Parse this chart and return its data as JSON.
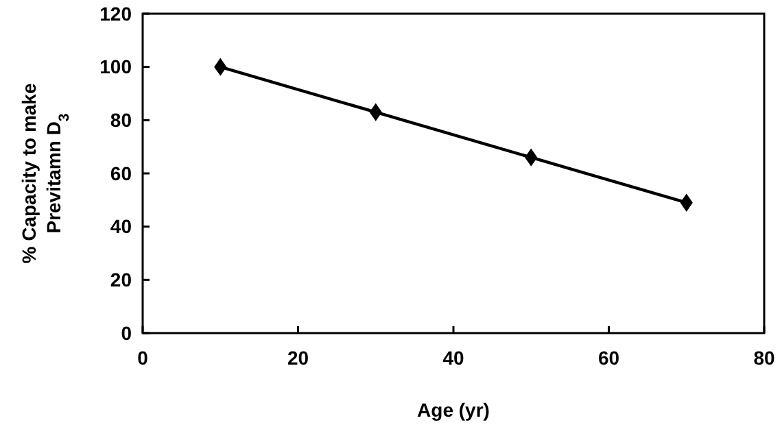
{
  "chart_data": {
    "type": "line",
    "xlabel": "Age (yr)",
    "ylabel": "% Capacity to make Previtamn D$_{3}$",
    "x": [
      10,
      30,
      50,
      70
    ],
    "series": [
      {
        "color": "#000000",
        "values": [
          100,
          83,
          66,
          49
        ]
      }
    ],
    "xlim": [
      0,
      80
    ],
    "xticks": [
      0,
      20,
      40,
      60,
      80
    ],
    "ylim": [
      0,
      120
    ],
    "yticks": [
      0,
      20,
      40,
      60,
      80,
      100,
      120
    ],
    "marker": "diamond",
    "line_style": "solid"
  }
}
